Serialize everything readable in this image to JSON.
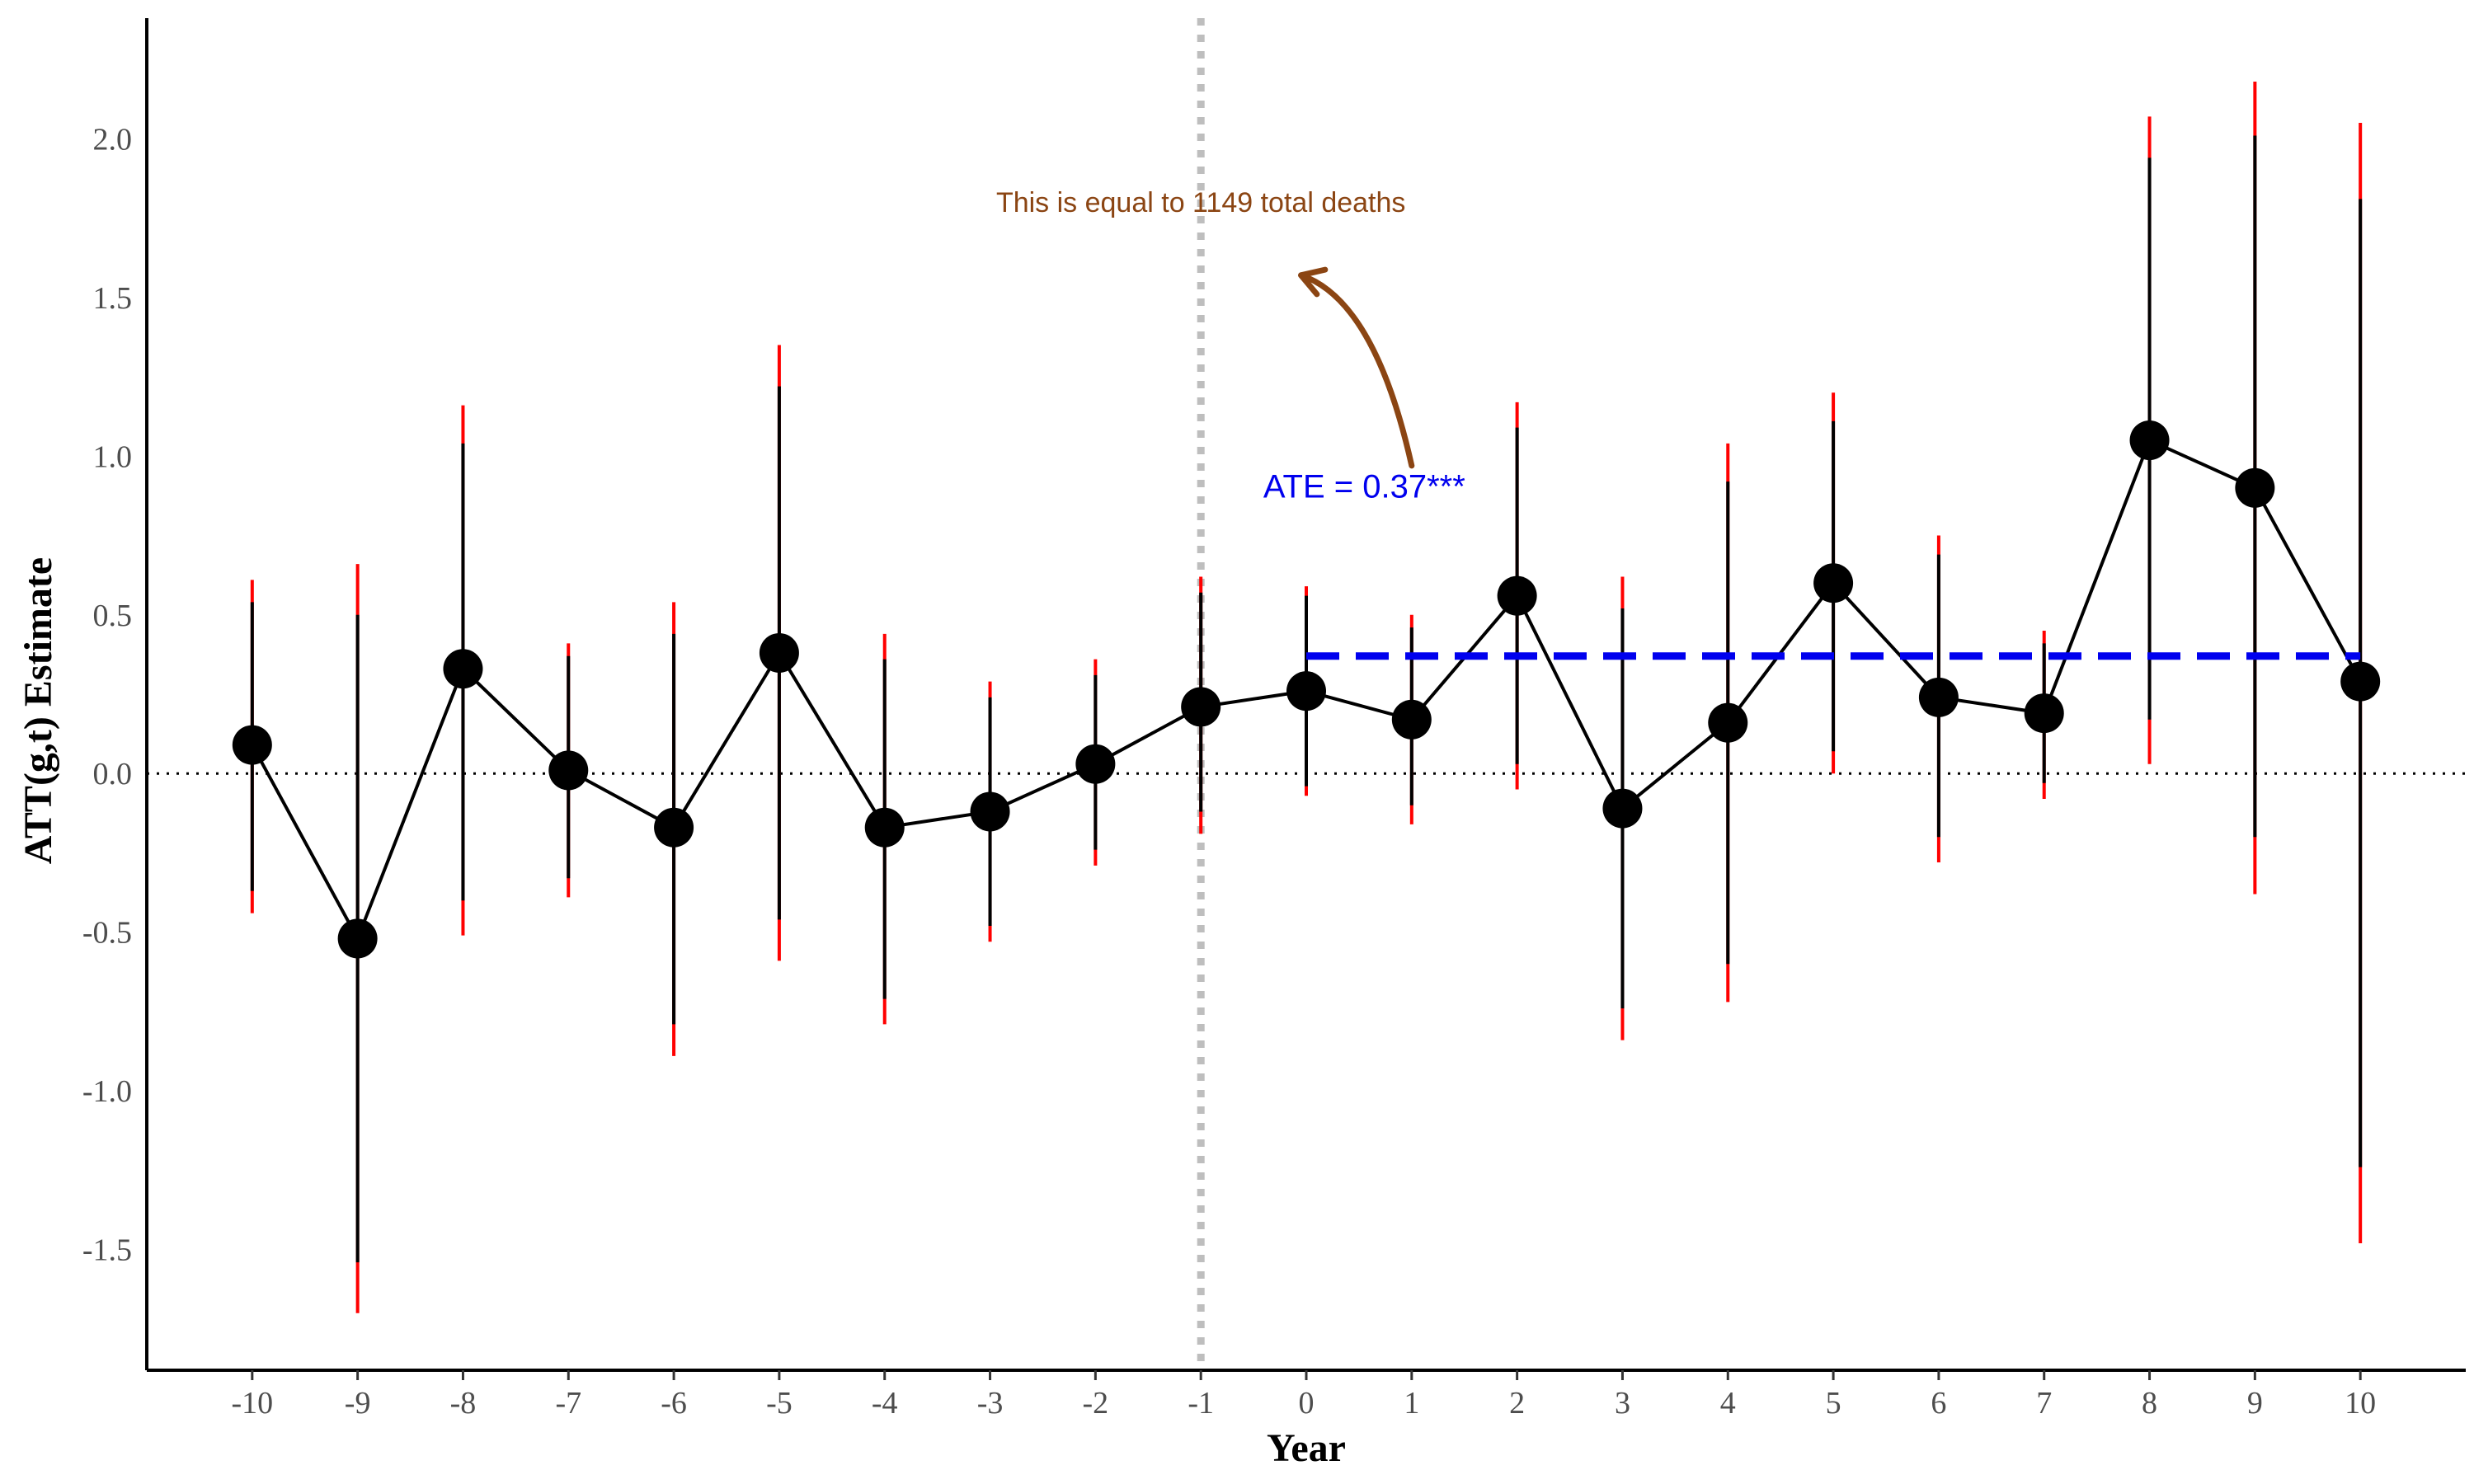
{
  "chart_data": {
    "type": "scatter",
    "title": "",
    "xlabel": "Year",
    "ylabel": "ATT(g,t) Estimate",
    "xlim": [
      -11,
      11
    ],
    "ylim": [
      -1.88,
      2.38
    ],
    "x_ticks": [
      -10,
      -9,
      -8,
      -7,
      -6,
      -5,
      -4,
      -3,
      -2,
      -1,
      0,
      1,
      2,
      3,
      4,
      5,
      6,
      7,
      8,
      9,
      10
    ],
    "x_tick_labels": [
      "-10",
      "-9",
      "-8",
      "-7",
      "-6",
      "-5",
      "-4",
      "-3",
      "-2",
      "-1",
      "0",
      "1",
      "2",
      "3",
      "4",
      "5",
      "6",
      "7",
      "8",
      "9",
      "10"
    ],
    "y_ticks": [
      -1.5,
      -1.0,
      -0.5,
      0.0,
      0.5,
      1.0,
      1.5,
      2.0
    ],
    "y_tick_labels": [
      "-1.5",
      "-1.0",
      "-0.5",
      "0.0",
      "0.5",
      "1.0",
      "1.5",
      "2.0"
    ],
    "grid": false,
    "legend": "none",
    "series": [
      {
        "x": [
          -10,
          -9,
          -8,
          -7,
          -6,
          -5,
          -4,
          -3,
          -2,
          -1,
          0,
          1,
          2,
          3,
          4,
          5,
          6,
          7,
          8,
          9,
          10
        ],
        "y": [
          0.09,
          -0.52,
          0.33,
          0.01,
          -0.17,
          0.38,
          -0.17,
          -0.12,
          0.03,
          0.21,
          0.26,
          0.17,
          0.56,
          -0.11,
          0.16,
          0.6,
          0.24,
          0.19,
          1.05,
          0.9,
          0.29
        ],
        "ci_inner_low": [
          -0.37,
          -1.54,
          -0.4,
          -0.33,
          -0.79,
          -0.46,
          -0.71,
          -0.48,
          -0.24,
          -0.12,
          -0.04,
          -0.1,
          0.03,
          -0.74,
          -0.6,
          0.07,
          -0.2,
          -0.03,
          0.17,
          -0.2,
          -1.24
        ],
        "ci_inner_high": [
          0.54,
          0.5,
          1.04,
          0.37,
          0.44,
          1.22,
          0.36,
          0.24,
          0.31,
          0.57,
          0.56,
          0.46,
          1.09,
          0.52,
          0.92,
          1.11,
          0.69,
          0.41,
          1.94,
          2.01,
          1.81
        ],
        "ci_outer_low": [
          -0.44,
          -1.7,
          -0.51,
          -0.39,
          -0.89,
          -0.59,
          -0.79,
          -0.53,
          -0.29,
          -0.19,
          -0.07,
          -0.16,
          -0.05,
          -0.84,
          -0.72,
          0.0,
          -0.28,
          -0.08,
          0.03,
          -0.38,
          -1.48
        ],
        "ci_outer_high": [
          0.61,
          0.66,
          1.16,
          0.41,
          0.54,
          1.35,
          0.44,
          0.29,
          0.36,
          0.62,
          0.59,
          0.5,
          1.17,
          0.62,
          1.04,
          1.2,
          0.75,
          0.45,
          2.07,
          2.18,
          2.05
        ]
      }
    ],
    "reference_lines": {
      "zero_line_y": 0.0,
      "treatment_line_x": -1,
      "ate_value": 0.37,
      "ate_x_range": [
        0,
        10
      ]
    },
    "annotations": [
      {
        "text": "This is equal to 1149 total deaths",
        "x": -1,
        "y": 1.77,
        "color": "#8B4513",
        "arrow_from": [
          1.0,
          0.97
        ],
        "arrow_to": [
          -0.05,
          1.57
        ]
      },
      {
        "text": "ATE = 0.37***",
        "x": 0.55,
        "y": 0.87,
        "color": "#0000EE"
      }
    ],
    "colors": {
      "points": "#000000",
      "line": "#000000",
      "ci_inner": "#000000",
      "ci_outer": "#FF0000",
      "ate_line": "#0000EE",
      "treatment_line": "#BEBEBE",
      "zero_line": "#000000",
      "annotation": "#8B4513",
      "axis": "#000000"
    }
  }
}
